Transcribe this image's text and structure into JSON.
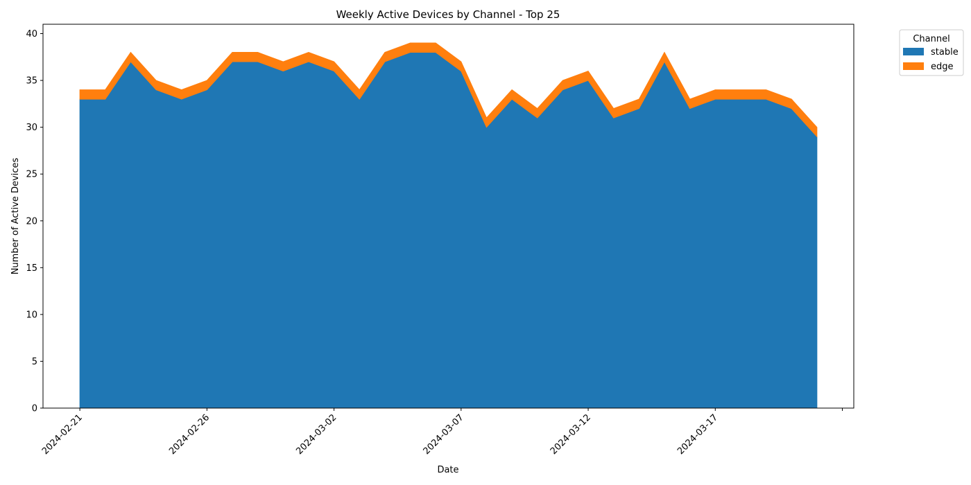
{
  "chart_data": {
    "type": "area",
    "stacked": true,
    "title": "Weekly Active Devices by Channel - Top 25",
    "xlabel": "Date",
    "ylabel": "Number of Active Devices",
    "x": [
      "2024-02-21",
      "2024-02-22",
      "2024-02-23",
      "2024-02-24",
      "2024-02-25",
      "2024-02-26",
      "2024-02-27",
      "2024-02-28",
      "2024-02-29",
      "2024-03-01",
      "2024-03-02",
      "2024-03-03",
      "2024-03-04",
      "2024-03-05",
      "2024-03-06",
      "2024-03-07",
      "2024-03-08",
      "2024-03-09",
      "2024-03-10",
      "2024-03-11",
      "2024-03-12",
      "2024-03-13",
      "2024-03-14",
      "2024-03-15",
      "2024-03-16",
      "2024-03-17",
      "2024-03-18",
      "2024-03-19",
      "2024-03-20",
      "2024-03-21"
    ],
    "x_ticks": [
      "2024-02-21",
      "2024-02-26",
      "2024-03-02",
      "2024-03-07",
      "2024-03-12",
      "2024-03-17"
    ],
    "xlim": [
      "2024-02-19.55",
      "2024-03-22.45"
    ],
    "ylim": [
      0,
      41
    ],
    "y_ticks": [
      0,
      5,
      10,
      15,
      20,
      25,
      30,
      35,
      40
    ],
    "series": [
      {
        "name": "stable",
        "color": "#1f77b4",
        "values": [
          33,
          33,
          37,
          34,
          33,
          34,
          37,
          37,
          36,
          37,
          36,
          33,
          37,
          38,
          38,
          36,
          30,
          33,
          31,
          34,
          35,
          31,
          32,
          37,
          32,
          33,
          33,
          33,
          32,
          29
        ]
      },
      {
        "name": "edge",
        "color": "#ff7f0e",
        "values": [
          1,
          1,
          1,
          1,
          1,
          1,
          1,
          1,
          1,
          1,
          1,
          1,
          1,
          1,
          1,
          1,
          1,
          1,
          1,
          1,
          1,
          1,
          1,
          1,
          1,
          1,
          1,
          1,
          1,
          1
        ]
      }
    ],
    "legend": {
      "title": "Channel",
      "position": "outside-top-right"
    },
    "grid": false
  }
}
